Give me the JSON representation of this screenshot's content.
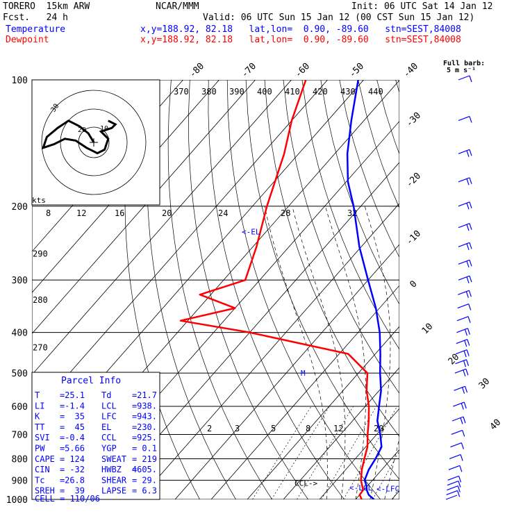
{
  "header": {
    "model": "TORERO  15km ARW",
    "org": "NCAR/MMM",
    "init": "Init: 06 UTC Sat 14 Jan 12",
    "fcst": "Fcst.   24 h",
    "valid": "Valid: 06 UTC Sun 15 Jan 12 (00 CST Sun 15 Jan 12)",
    "temp_label": "Temperature",
    "dew_label": "Dewpoint",
    "loc_line": "x,y=188.92, 82.18   lat,lon=  0.90, -89.60   stn=SEST,84008",
    "barb_title": "Full barb:",
    "barb_unit": "5 m s⁻¹"
  },
  "colors": {
    "temperature": "#0000ff",
    "dewpoint": "#ff0000",
    "text": "#000000",
    "parcel_text": "#0000ff"
  },
  "chart_data": {
    "type": "line",
    "title": "",
    "pressure_ticks": [
      100,
      200,
      300,
      400,
      500,
      600,
      700,
      800,
      900,
      1000
    ],
    "temp_ticks": [
      -80,
      -70,
      -60,
      -50,
      -40,
      -30,
      -20,
      -10,
      0,
      10,
      20,
      30,
      40
    ],
    "theta_labels": [
      "370",
      "380",
      "390",
      "400",
      "410",
      "420",
      "430",
      "440"
    ],
    "mixing_ratio_labels": [
      "2",
      "3",
      "5",
      "8",
      "12",
      "20"
    ],
    "hodo_speed_labels": [
      "8",
      "12",
      "16",
      "20",
      "24",
      "28",
      "32"
    ],
    "hodo_unit": "kts",
    "hodo_ring_labels": [
      "30",
      "20",
      "10"
    ],
    "height_labels": [
      {
        "label": "290",
        "p": 260
      },
      {
        "label": "280",
        "p": 335
      },
      {
        "label": "270",
        "p": 435
      }
    ],
    "level_labels": [
      {
        "label": "<-EL",
        "p": 230
      },
      {
        "label": "M",
        "p": 500
      },
      {
        "label": "CCL->",
        "p": 925
      },
      {
        "label": "<-LCL",
        "p": 938
      },
      {
        "label": "<-LFC",
        "p": 943
      }
    ],
    "series": [
      {
        "name": "Temperature",
        "units": "degC",
        "points": [
          {
            "p": 1000,
            "t": 25.1
          },
          {
            "p": 975,
            "t": 22.5
          },
          {
            "p": 950,
            "t": 20.8
          },
          {
            "p": 925,
            "t": 19.5
          },
          {
            "p": 900,
            "t": 17.8
          },
          {
            "p": 850,
            "t": 16.4
          },
          {
            "p": 800,
            "t": 15.6
          },
          {
            "p": 750,
            "t": 14.4
          },
          {
            "p": 700,
            "t": 11.0
          },
          {
            "p": 650,
            "t": 6.9
          },
          {
            "p": 600,
            "t": 3.8
          },
          {
            "p": 550,
            "t": 0.5
          },
          {
            "p": 500,
            "t": -4.0
          },
          {
            "p": 450,
            "t": -8.6
          },
          {
            "p": 400,
            "t": -14.0
          },
          {
            "p": 350,
            "t": -21.0
          },
          {
            "p": 300,
            "t": -30.0
          },
          {
            "p": 250,
            "t": -40.5
          },
          {
            "p": 200,
            "t": -52.0
          },
          {
            "p": 175,
            "t": -59.5
          },
          {
            "p": 150,
            "t": -66.5
          },
          {
            "p": 125,
            "t": -73.5
          },
          {
            "p": 100,
            "t": -81.5
          }
        ]
      },
      {
        "name": "Dewpoint",
        "units": "degC",
        "points": [
          {
            "p": 1000,
            "t": 21.7
          },
          {
            "p": 975,
            "t": 20.0
          },
          {
            "p": 950,
            "t": 19.8
          },
          {
            "p": 925,
            "t": 18.3
          },
          {
            "p": 900,
            "t": 16.8
          },
          {
            "p": 850,
            "t": 14.5
          },
          {
            "p": 800,
            "t": 12.5
          },
          {
            "p": 750,
            "t": 10.5
          },
          {
            "p": 700,
            "t": 7.5
          },
          {
            "p": 650,
            "t": 4.5
          },
          {
            "p": 600,
            "t": 1.0
          },
          {
            "p": 550,
            "t": -3.5
          },
          {
            "p": 500,
            "t": -7.5
          },
          {
            "p": 450,
            "t": -17.5
          },
          {
            "p": 400,
            "t": -50.0
          },
          {
            "p": 375,
            "t": -72.0
          },
          {
            "p": 350,
            "t": -60.0
          },
          {
            "p": 325,
            "t": -73.0
          },
          {
            "p": 300,
            "t": -64.0
          },
          {
            "p": 250,
            "t": -69.0
          },
          {
            "p": 200,
            "t": -76.0
          },
          {
            "p": 150,
            "t": -84.0
          },
          {
            "p": 125,
            "t": -90.0
          },
          {
            "p": 100,
            "t": -96.0
          }
        ]
      }
    ],
    "wind_barbs": [
      {
        "p": 1000,
        "barbs": 0
      },
      {
        "p": 975,
        "barbs": 1
      },
      {
        "p": 950,
        "barbs": 1
      },
      {
        "p": 925,
        "barbs": 1
      },
      {
        "p": 900,
        "barbs": 1
      },
      {
        "p": 850,
        "barbs": 1
      },
      {
        "p": 800,
        "barbs": 1
      },
      {
        "p": 750,
        "barbs": 1
      },
      {
        "p": 700,
        "barbs": 1
      },
      {
        "p": 650,
        "barbs": 2
      },
      {
        "p": 600,
        "barbs": 2
      },
      {
        "p": 550,
        "barbs": 2
      },
      {
        "p": 500,
        "barbs": 2
      },
      {
        "p": 475,
        "barbs": 2
      },
      {
        "p": 450,
        "barbs": 2
      },
      {
        "p": 425,
        "barbs": 2
      },
      {
        "p": 400,
        "barbs": 2
      },
      {
        "p": 375,
        "barbs": 1
      },
      {
        "p": 350,
        "barbs": 1
      },
      {
        "p": 325,
        "barbs": 2
      },
      {
        "p": 300,
        "barbs": 2
      },
      {
        "p": 275,
        "barbs": 2
      },
      {
        "p": 250,
        "barbs": 2
      },
      {
        "p": 225,
        "barbs": 2
      },
      {
        "p": 200,
        "barbs": 2
      },
      {
        "p": 175,
        "barbs": 2
      },
      {
        "p": 150,
        "barbs": 2
      },
      {
        "p": 125,
        "barbs": 1
      },
      {
        "p": 100,
        "barbs": 1
      }
    ],
    "hodograph": [
      [
        0,
        0
      ],
      [
        -3,
        5
      ],
      [
        -8,
        9
      ],
      [
        -14,
        12
      ],
      [
        -20,
        8
      ],
      [
        -26,
        3
      ],
      [
        -28,
        -3
      ],
      [
        -22,
        -1
      ],
      [
        -16,
        2
      ],
      [
        -10,
        1
      ],
      [
        -4,
        -3
      ],
      [
        2,
        -6
      ],
      [
        6,
        -4
      ],
      [
        8,
        2
      ],
      [
        4,
        6
      ],
      [
        10,
        8
      ],
      [
        12,
        10
      ],
      [
        8,
        12
      ]
    ],
    "grid": true,
    "legend": "top-left"
  },
  "parcel_info": {
    "title": "Parcel Info",
    "rows": [
      [
        {
          "k": "T",
          "v": "25.1"
        },
        {
          "k": "Td",
          "v": "21.7"
        }
      ],
      [
        {
          "k": "LI",
          "v": "-1.4"
        },
        {
          "k": "LCL",
          "v": "938."
        }
      ],
      [
        {
          "k": "K",
          "v": "35"
        },
        {
          "k": "LFC",
          "v": "943."
        }
      ],
      [
        {
          "k": "TT",
          "v": "45"
        },
        {
          "k": "EL",
          "v": "230."
        }
      ],
      [
        {
          "k": "SVI",
          "v": "-0.4"
        },
        {
          "k": "CCL",
          "v": "925."
        }
      ],
      [
        {
          "k": "PW",
          "v": "5.66"
        },
        {
          "k": "YGP",
          "v": "0.1"
        }
      ],
      [
        {
          "k": "CAPE",
          "v": "124"
        },
        {
          "k": "SWEAT",
          "v": "219"
        }
      ],
      [
        {
          "k": "CIN",
          "v": "-32"
        },
        {
          "k": "HWBZ",
          "v": "4605."
        }
      ],
      [
        {
          "k": "Tc",
          "v": "26.8"
        },
        {
          "k": "SHEAR",
          "v": "29."
        }
      ],
      [
        {
          "k": "SREH",
          "v": "39"
        },
        {
          "k": "LAPSE",
          "v": "6.3"
        }
      ]
    ],
    "cell": "CELL = 110/06"
  }
}
